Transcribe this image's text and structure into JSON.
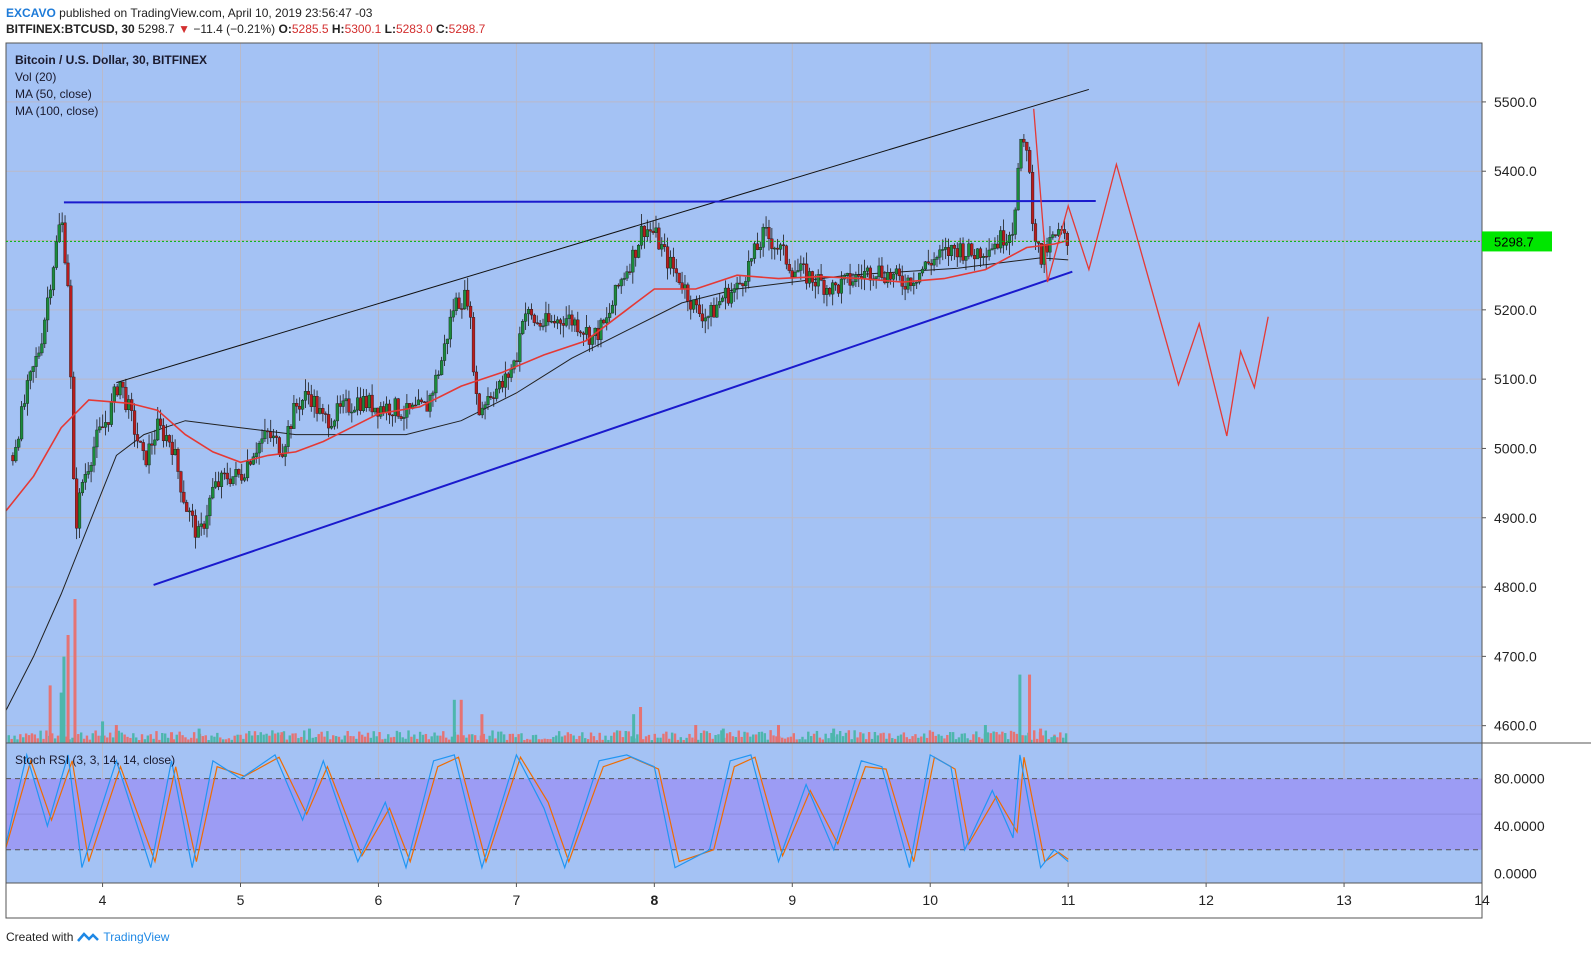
{
  "header": {
    "author": "EXCAVO",
    "published_text": "published on TradingView.com, April 10, 2019 23:56:47 -03",
    "symbol": "BITFINEX:BTCUSD, 30",
    "price": "5298.7",
    "change": "−11.4 (−0.21%)",
    "open_label": "O:",
    "open": "5285.5",
    "high_label": "H:",
    "high": "5300.1",
    "low_label": "L:",
    "low": "5283.0",
    "close_label": "C:",
    "close": "5298.7"
  },
  "legend": {
    "title": "Bitcoin / U.S. Dollar, 30, BITFINEX",
    "vol": "Vol (20)",
    "ma50": "MA (50, close)",
    "ma100": "MA (100, close)",
    "stoch": "Stoch RSI (3, 3, 14, 14, close)"
  },
  "footer": {
    "created_with": "Created with",
    "brand": "TradingView"
  },
  "colors": {
    "bg_main": "#a4c2f4",
    "bg_stoch_band": "#9c9cf4",
    "ma50": "#e53935",
    "ma100": "#212121",
    "trend_blue": "#1a1acd",
    "candle_up": "#1b8a3c",
    "candle_down": "#b71c1c",
    "vol_up": "#4db6ac",
    "vol_down": "#e57373",
    "k_line": "#2196f3",
    "d_line": "#ef6c00",
    "last_price_bg": "#00e600"
  },
  "chart_data": {
    "type": "candlestick",
    "y_ticks": [
      "5500.0",
      "5400.0",
      "5300.0",
      "5200.0",
      "5100.0",
      "5000.0",
      "4900.0",
      "4800.0",
      "4700.0",
      "4600.0"
    ],
    "ylim": [
      4575,
      5585
    ],
    "last_price_label": "5298.7",
    "x_ticks": [
      {
        "label": "4",
        "day": 4
      },
      {
        "label": "5",
        "day": 5
      },
      {
        "label": "6",
        "day": 6
      },
      {
        "label": "7",
        "day": 7
      },
      {
        "label": "8",
        "day": 8,
        "bold": true
      },
      {
        "label": "9",
        "day": 9
      },
      {
        "label": "10",
        "day": 10
      },
      {
        "label": "11",
        "day": 11
      },
      {
        "label": "12",
        "day": 12
      },
      {
        "label": "13",
        "day": 13
      },
      {
        "label": "14",
        "day": 14
      }
    ],
    "xlim_days": [
      3.3,
      14.0
    ],
    "price_path": [
      [
        3.35,
        4990
      ],
      [
        3.45,
        5080
      ],
      [
        3.55,
        5150
      ],
      [
        3.62,
        5240
      ],
      [
        3.7,
        5335
      ],
      [
        3.75,
        5240
      ],
      [
        3.8,
        4880
      ],
      [
        3.85,
        4950
      ],
      [
        3.95,
        5010
      ],
      [
        4.05,
        5050
      ],
      [
        4.12,
        5100
      ],
      [
        4.2,
        5050
      ],
      [
        4.3,
        4980
      ],
      [
        4.4,
        5030
      ],
      [
        4.5,
        5010
      ],
      [
        4.6,
        4920
      ],
      [
        4.7,
        4870
      ],
      [
        4.8,
        4940
      ],
      [
        4.9,
        4960
      ],
      [
        5.0,
        4960
      ],
      [
        5.1,
        5000
      ],
      [
        5.2,
        5020
      ],
      [
        5.3,
        5000
      ],
      [
        5.4,
        5060
      ],
      [
        5.5,
        5080
      ],
      [
        5.6,
        5040
      ],
      [
        5.7,
        5050
      ],
      [
        5.85,
        5070
      ],
      [
        6.0,
        5060
      ],
      [
        6.1,
        5060
      ],
      [
        6.2,
        5050
      ],
      [
        6.35,
        5060
      ],
      [
        6.45,
        5120
      ],
      [
        6.55,
        5210
      ],
      [
        6.65,
        5220
      ],
      [
        6.72,
        5050
      ],
      [
        6.8,
        5080
      ],
      [
        6.9,
        5090
      ],
      [
        7.0,
        5130
      ],
      [
        7.05,
        5200
      ],
      [
        7.15,
        5180
      ],
      [
        7.25,
        5180
      ],
      [
        7.35,
        5190
      ],
      [
        7.45,
        5180
      ],
      [
        7.55,
        5160
      ],
      [
        7.65,
        5180
      ],
      [
        7.75,
        5240
      ],
      [
        7.85,
        5280
      ],
      [
        7.92,
        5320
      ],
      [
        8.0,
        5310
      ],
      [
        8.1,
        5270
      ],
      [
        8.2,
        5240
      ],
      [
        8.3,
        5200
      ],
      [
        8.4,
        5190
      ],
      [
        8.5,
        5220
      ],
      [
        8.6,
        5230
      ],
      [
        8.7,
        5270
      ],
      [
        8.8,
        5310
      ],
      [
        8.9,
        5290
      ],
      [
        9.0,
        5260
      ],
      [
        9.1,
        5250
      ],
      [
        9.2,
        5240
      ],
      [
        9.3,
        5230
      ],
      [
        9.4,
        5240
      ],
      [
        9.5,
        5250
      ],
      [
        9.6,
        5260
      ],
      [
        9.7,
        5250
      ],
      [
        9.8,
        5240
      ],
      [
        9.9,
        5250
      ],
      [
        10.0,
        5270
      ],
      [
        10.1,
        5280
      ],
      [
        10.2,
        5290
      ],
      [
        10.3,
        5280
      ],
      [
        10.4,
        5290
      ],
      [
        10.5,
        5300
      ],
      [
        10.6,
        5320
      ],
      [
        10.65,
        5430
      ],
      [
        10.7,
        5440
      ],
      [
        10.75,
        5320
      ],
      [
        10.8,
        5270
      ],
      [
        10.88,
        5300
      ],
      [
        10.95,
        5310
      ],
      [
        11.0,
        5290
      ]
    ],
    "ma50": [
      [
        3.3,
        4910
      ],
      [
        3.5,
        4960
      ],
      [
        3.7,
        5030
      ],
      [
        3.9,
        5070
      ],
      [
        4.2,
        5065
      ],
      [
        4.4,
        5055
      ],
      [
        4.6,
        5020
      ],
      [
        4.8,
        4995
      ],
      [
        5.0,
        4980
      ],
      [
        5.2,
        4990
      ],
      [
        5.4,
        4995
      ],
      [
        5.6,
        5010
      ],
      [
        5.8,
        5030
      ],
      [
        6.0,
        5050
      ],
      [
        6.3,
        5060
      ],
      [
        6.6,
        5090
      ],
      [
        6.9,
        5110
      ],
      [
        7.2,
        5135
      ],
      [
        7.5,
        5155
      ],
      [
        7.8,
        5200
      ],
      [
        8.0,
        5230
      ],
      [
        8.3,
        5230
      ],
      [
        8.6,
        5250
      ],
      [
        8.9,
        5245
      ],
      [
        9.2,
        5248
      ],
      [
        9.5,
        5245
      ],
      [
        9.8,
        5240
      ],
      [
        10.1,
        5245
      ],
      [
        10.4,
        5258
      ],
      [
        10.7,
        5290
      ],
      [
        10.9,
        5295
      ],
      [
        11.0,
        5300
      ]
    ],
    "ma100": [
      [
        3.3,
        4622
      ],
      [
        3.5,
        4700
      ],
      [
        3.7,
        4790
      ],
      [
        3.9,
        4890
      ],
      [
        4.1,
        4990
      ],
      [
        4.3,
        5020
      ],
      [
        4.6,
        5040
      ],
      [
        5.0,
        5030
      ],
      [
        5.4,
        5020
      ],
      [
        5.8,
        5020
      ],
      [
        6.2,
        5020
      ],
      [
        6.6,
        5040
      ],
      [
        7.0,
        5080
      ],
      [
        7.4,
        5130
      ],
      [
        7.8,
        5170
      ],
      [
        8.2,
        5210
      ],
      [
        8.6,
        5230
      ],
      [
        9.0,
        5240
      ],
      [
        9.4,
        5250
      ],
      [
        9.8,
        5255
      ],
      [
        10.2,
        5260
      ],
      [
        10.6,
        5270
      ],
      [
        10.8,
        5275
      ],
      [
        11.0,
        5272
      ]
    ],
    "trendlines": {
      "upper_black": [
        [
          4.1,
          5095
        ],
        [
          11.15,
          5518
        ]
      ],
      "lower_blue": [
        [
          4.37,
          4803
        ],
        [
          11.03,
          5255
        ]
      ],
      "resistance_blue": [
        [
          3.72,
          5355
        ],
        [
          11.2,
          5357
        ]
      ]
    },
    "projection_red": [
      [
        10.75,
        5490
      ],
      [
        10.85,
        5240
      ],
      [
        11.0,
        5350
      ],
      [
        11.15,
        5258
      ],
      [
        11.35,
        5410
      ],
      [
        11.8,
        5092
      ],
      [
        11.95,
        5180
      ],
      [
        12.15,
        5018
      ],
      [
        12.25,
        5140
      ],
      [
        12.35,
        5088
      ],
      [
        12.45,
        5190
      ]
    ],
    "volume": {
      "ylim": [
        0,
        250
      ],
      "bars": [
        [
          3.7,
          70,
          0
        ],
        [
          3.75,
          150,
          1
        ],
        [
          3.8,
          200,
          1
        ],
        [
          3.72,
          120,
          0
        ],
        [
          3.62,
          80,
          1
        ],
        [
          4.0,
          30,
          0
        ],
        [
          4.1,
          25,
          1
        ],
        [
          4.5,
          15,
          1
        ],
        [
          4.7,
          20,
          0
        ],
        [
          5.3,
          15,
          1
        ],
        [
          5.5,
          20,
          0
        ],
        [
          6.55,
          60,
          0
        ],
        [
          6.6,
          60,
          1
        ],
        [
          6.75,
          40,
          1
        ],
        [
          7.85,
          40,
          0
        ],
        [
          7.9,
          50,
          1
        ],
        [
          8.3,
          25,
          1
        ],
        [
          8.5,
          20,
          0
        ],
        [
          8.9,
          25,
          1
        ],
        [
          9.3,
          20,
          0
        ],
        [
          10.4,
          25,
          0
        ],
        [
          10.65,
          95,
          0
        ],
        [
          10.72,
          95,
          1
        ],
        [
          10.8,
          20,
          1
        ],
        [
          10.9,
          10,
          0
        ]
      ]
    },
    "stoch_rsi": {
      "y_ticks": [
        "80.0000",
        "40.0000",
        "0.0000"
      ],
      "ylim": [
        -8,
        110
      ],
      "band": [
        20,
        80
      ],
      "k": [
        [
          3.3,
          25
        ],
        [
          3.45,
          100
        ],
        [
          3.6,
          40
        ],
        [
          3.75,
          100
        ],
        [
          3.85,
          5
        ],
        [
          4.1,
          95
        ],
        [
          4.35,
          5
        ],
        [
          4.5,
          95
        ],
        [
          4.65,
          5
        ],
        [
          4.8,
          95
        ],
        [
          5.0,
          80
        ],
        [
          5.25,
          100
        ],
        [
          5.45,
          45
        ],
        [
          5.6,
          95
        ],
        [
          5.85,
          10
        ],
        [
          6.05,
          60
        ],
        [
          6.2,
          5
        ],
        [
          6.4,
          95
        ],
        [
          6.55,
          100
        ],
        [
          6.75,
          5
        ],
        [
          7.0,
          100
        ],
        [
          7.2,
          55
        ],
        [
          7.35,
          5
        ],
        [
          7.6,
          95
        ],
        [
          7.8,
          100
        ],
        [
          8.0,
          90
        ],
        [
          8.15,
          5
        ],
        [
          8.4,
          20
        ],
        [
          8.55,
          95
        ],
        [
          8.7,
          100
        ],
        [
          8.9,
          10
        ],
        [
          9.1,
          75
        ],
        [
          9.3,
          20
        ],
        [
          9.5,
          95
        ],
        [
          9.65,
          90
        ],
        [
          9.85,
          5
        ],
        [
          10.0,
          100
        ],
        [
          10.15,
          90
        ],
        [
          10.25,
          20
        ],
        [
          10.45,
          70
        ],
        [
          10.6,
          30
        ],
        [
          10.65,
          100
        ],
        [
          10.8,
          5
        ],
        [
          10.9,
          20
        ],
        [
          11.0,
          10
        ]
      ],
      "d": [
        [
          3.3,
          22
        ],
        [
          3.48,
          95
        ],
        [
          3.63,
          45
        ],
        [
          3.78,
          95
        ],
        [
          3.9,
          10
        ],
        [
          4.13,
          90
        ],
        [
          4.38,
          10
        ],
        [
          4.53,
          90
        ],
        [
          4.68,
          10
        ],
        [
          4.83,
          90
        ],
        [
          5.03,
          82
        ],
        [
          5.28,
          98
        ],
        [
          5.48,
          50
        ],
        [
          5.63,
          90
        ],
        [
          5.88,
          15
        ],
        [
          6.08,
          55
        ],
        [
          6.23,
          10
        ],
        [
          6.43,
          90
        ],
        [
          6.58,
          98
        ],
        [
          6.78,
          10
        ],
        [
          7.03,
          98
        ],
        [
          7.23,
          60
        ],
        [
          7.38,
          10
        ],
        [
          7.63,
          90
        ],
        [
          7.83,
          98
        ],
        [
          8.03,
          88
        ],
        [
          8.18,
          10
        ],
        [
          8.43,
          20
        ],
        [
          8.58,
          90
        ],
        [
          8.73,
          98
        ],
        [
          8.93,
          15
        ],
        [
          9.13,
          70
        ],
        [
          9.33,
          25
        ],
        [
          9.53,
          90
        ],
        [
          9.68,
          88
        ],
        [
          9.88,
          10
        ],
        [
          10.03,
          98
        ],
        [
          10.18,
          88
        ],
        [
          10.28,
          25
        ],
        [
          10.48,
          65
        ],
        [
          10.63,
          35
        ],
        [
          10.68,
          98
        ],
        [
          10.83,
          10
        ],
        [
          10.93,
          18
        ],
        [
          11.0,
          12
        ]
      ]
    }
  }
}
